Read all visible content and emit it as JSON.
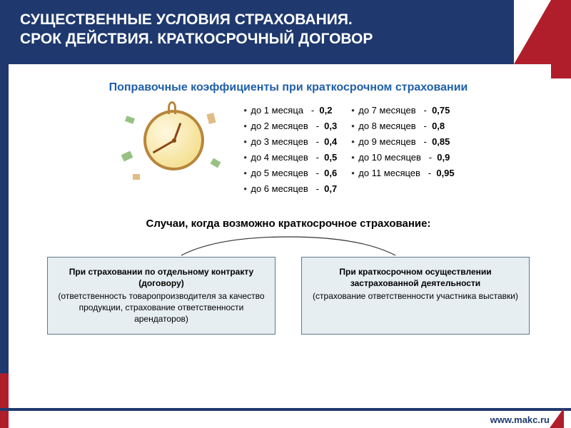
{
  "header": {
    "title_line1": "СУЩЕСТВЕННЫЕ УСЛОВИЯ СТРАХОВАНИЯ.",
    "title_line2": "СРОК ДЕЙСТВИЯ. КРАТКОСРОЧНЫЙ ДОГОВОР"
  },
  "subtitle": "Поправочные коэффициенты при краткосрочном страховании",
  "coefficients_left": [
    {
      "label": "до 1 месяца",
      "value": "0,2"
    },
    {
      "label": "до 2 месяцев",
      "value": "0,3"
    },
    {
      "label": "до 3 месяцев",
      "value": "0,4"
    },
    {
      "label": "до 4 месяцев",
      "value": "0,5"
    },
    {
      "label": "до 5 месяцев",
      "value": "0,6"
    },
    {
      "label": "до 6 месяцев",
      "value": "0,7"
    }
  ],
  "coefficients_right": [
    {
      "label": "до 7 месяцев",
      "value": "0,75"
    },
    {
      "label": "до 8 месяцев",
      "value": "0,8"
    },
    {
      "label": "до 9 месяцев",
      "value": "0,85"
    },
    {
      "label": "до 10 месяцев",
      "value": "0,9"
    },
    {
      "label": "до 11 месяцев",
      "value": "0,95"
    }
  ],
  "cases_title": "Случаи, когда возможно краткосрочное страхование:",
  "box1": {
    "bold": "При страховании по отдельному контракту (договору)",
    "text": "(ответственность товаропроизводителя за качество продукции, страхование ответственности арендаторов)"
  },
  "box2": {
    "bold": "При краткосрочном осуществлении застрахованной деятельности",
    "text": "(страхование ответственности участника выставки)"
  },
  "footer": {
    "url": "www.makc.ru"
  },
  "colors": {
    "header_bg": "#1f396e",
    "accent_red": "#b11e2b",
    "subtitle_blue": "#1f5fa8",
    "box_bg": "#e6eef2",
    "box_border": "#5f7a8c"
  }
}
